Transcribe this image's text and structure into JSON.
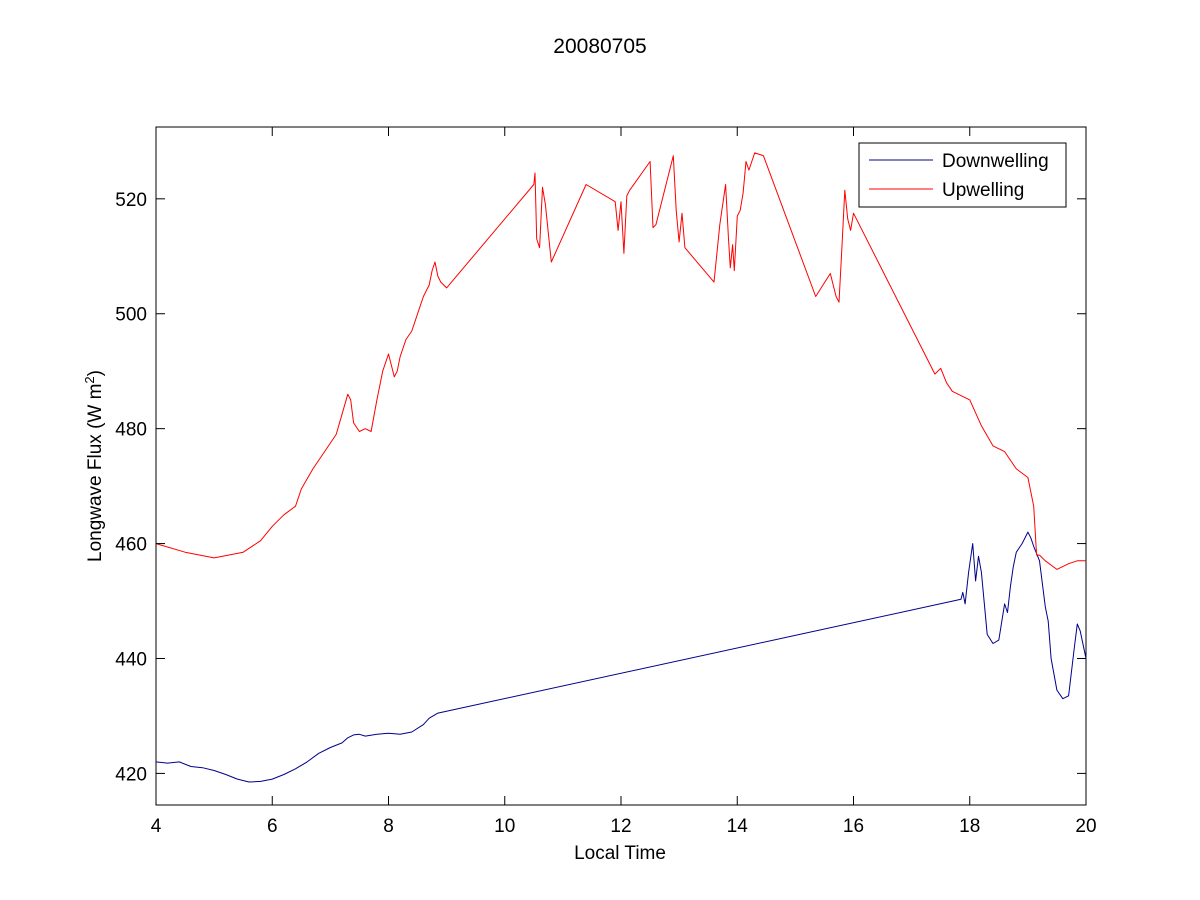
{
  "chart_data": {
    "type": "line",
    "title": "20080705",
    "xlabel": "Local Time",
    "ylabel": "Longwave Flux (W m",
    "ylabel_sup": "2",
    "ylabel_close": ")",
    "xlim": [
      4,
      20
    ],
    "ylim": [
      414.5,
      532.5
    ],
    "x_ticks": [
      4,
      6,
      8,
      10,
      12,
      14,
      16,
      18,
      20
    ],
    "y_ticks": [
      420,
      440,
      460,
      480,
      500,
      520
    ],
    "grid": false,
    "legend_position": "top-right",
    "series": [
      {
        "name": "Downwelling",
        "color": "#00008b",
        "x": [
          4.0,
          4.2,
          4.4,
          4.6,
          4.8,
          5.0,
          5.2,
          5.4,
          5.6,
          5.8,
          6.0,
          6.2,
          6.4,
          6.6,
          6.8,
          7.0,
          7.2,
          7.3,
          7.4,
          7.5,
          7.6,
          7.8,
          8.0,
          8.2,
          8.4,
          8.6,
          8.7,
          8.85,
          17.85,
          17.88,
          17.92,
          17.98,
          18.05,
          18.1,
          18.15,
          18.2,
          18.3,
          18.4,
          18.5,
          18.6,
          18.65,
          18.7,
          18.75,
          18.8,
          18.9,
          19.0,
          19.05,
          19.1,
          19.2,
          19.3,
          19.35,
          19.4,
          19.5,
          19.6,
          19.7,
          19.8,
          19.85,
          19.9,
          20.0
        ],
        "y": [
          422,
          421.8,
          422,
          421.2,
          421,
          420.5,
          419.8,
          419,
          418.5,
          418.6,
          419,
          419.8,
          420.8,
          422,
          423.5,
          424.5,
          425.3,
          426.2,
          426.7,
          426.8,
          426.5,
          426.8,
          427,
          426.8,
          427.2,
          428.5,
          429.6,
          430.5,
          450.3,
          451.5,
          449.5,
          455,
          460,
          453.5,
          457.8,
          455,
          444.2,
          442.6,
          443.2,
          449.5,
          448,
          452.5,
          456,
          458.5,
          460,
          462,
          461,
          459.5,
          457,
          449,
          446.5,
          440,
          434.5,
          433,
          433.5,
          442,
          446,
          444.8,
          440
        ]
      },
      {
        "name": "Upwelling",
        "color": "#ff0000",
        "x": [
          4.0,
          4.5,
          5.0,
          5.5,
          5.8,
          6.0,
          6.2,
          6.4,
          6.5,
          6.7,
          6.9,
          7.1,
          7.2,
          7.3,
          7.35,
          7.4,
          7.5,
          7.6,
          7.7,
          7.8,
          7.9,
          8.0,
          8.05,
          8.1,
          8.15,
          8.2,
          8.3,
          8.4,
          8.5,
          8.6,
          8.7,
          8.75,
          8.8,
          8.85,
          8.9,
          9.0,
          10.5,
          10.52,
          10.55,
          10.6,
          10.65,
          10.7,
          10.8,
          11.4,
          11.9,
          11.95,
          12.0,
          12.05,
          12.1,
          12.15,
          12.5,
          12.55,
          12.6,
          12.9,
          12.95,
          13.0,
          13.05,
          13.1,
          13.6,
          13.7,
          13.8,
          13.85,
          13.88,
          13.92,
          13.95,
          14.0,
          14.05,
          14.1,
          14.15,
          14.2,
          14.3,
          14.45,
          15.35,
          15.6,
          15.7,
          15.75,
          15.8,
          15.85,
          15.9,
          15.95,
          16.0,
          17.4,
          17.5,
          17.6,
          17.7,
          17.8,
          18.0,
          18.2,
          18.4,
          18.6,
          18.8,
          19.0,
          19.1,
          19.15,
          19.2,
          19.3,
          19.5,
          19.7,
          19.85,
          20.0
        ],
        "y": [
          460,
          458.5,
          457.5,
          458.5,
          460.5,
          463,
          465,
          466.5,
          469.5,
          473,
          476,
          479,
          482.5,
          486,
          485,
          481,
          479.5,
          480,
          479.5,
          485,
          490,
          493,
          491,
          489,
          490,
          492.5,
          495.5,
          497,
          500,
          503,
          505,
          507.5,
          509,
          506.5,
          505.5,
          504.5,
          522.5,
          524.5,
          513,
          511.5,
          522,
          519,
          509,
          522.5,
          519.5,
          514.5,
          519.5,
          510.5,
          520.5,
          521.5,
          526.5,
          515,
          515.5,
          527.5,
          518,
          512.5,
          517.5,
          511.5,
          505.5,
          515.5,
          522.5,
          513,
          508,
          512,
          507.5,
          517,
          518,
          521,
          526.5,
          525,
          528,
          527.5,
          503,
          507,
          503,
          502,
          511.5,
          521.5,
          516.5,
          514.5,
          517.5,
          489.5,
          490.5,
          488,
          486.5,
          486,
          485,
          480.5,
          477,
          476,
          473,
          471.5,
          466.5,
          458,
          458,
          457,
          455.5,
          456.5,
          457,
          457
        ]
      }
    ]
  }
}
